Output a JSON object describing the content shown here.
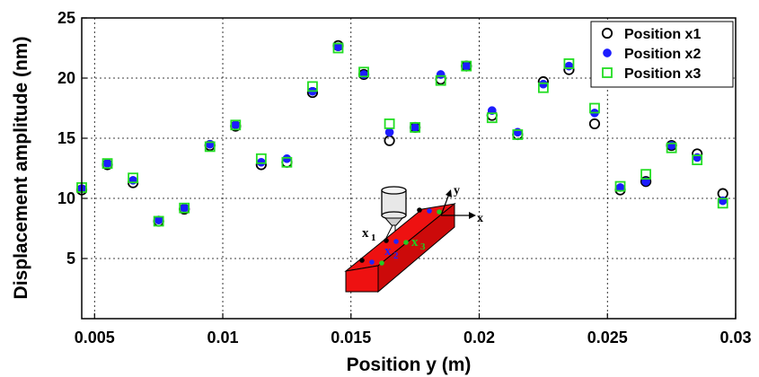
{
  "chart_data": {
    "type": "scatter",
    "xlabel": "Position y (m)",
    "ylabel": "Displacement amplitude (nm)",
    "xlim": [
      0.0045,
      0.03
    ],
    "ylim": [
      0,
      25
    ],
    "xticks": [
      0.005,
      0.01,
      0.015,
      0.02,
      0.025,
      0.03
    ],
    "xtick_labels": [
      "0.005",
      "0.01",
      "0.015",
      "0.02",
      "0.025",
      "0.03"
    ],
    "yticks": [
      5,
      10,
      15,
      20,
      25
    ],
    "ytick_labels": [
      "5",
      "10",
      "15",
      "20",
      "25"
    ],
    "grid": true,
    "legend_position": "top-right",
    "x": [
      0.0045,
      0.0055,
      0.0065,
      0.0075,
      0.0085,
      0.0095,
      0.0105,
      0.0115,
      0.0125,
      0.0135,
      0.0145,
      0.0155,
      0.0165,
      0.0175,
      0.0185,
      0.0195,
      0.0205,
      0.0215,
      0.0225,
      0.0235,
      0.0245,
      0.0255,
      0.0265,
      0.0275,
      0.0285,
      0.0295
    ],
    "series": [
      {
        "name": "Position x1",
        "marker": "circle-open",
        "color": "#000000",
        "values": [
          10.7,
          12.8,
          11.3,
          8.1,
          9.1,
          14.4,
          16.0,
          12.8,
          13.0,
          18.8,
          22.7,
          20.3,
          14.8,
          15.9,
          19.9,
          21.0,
          16.9,
          15.3,
          19.7,
          20.7,
          16.2,
          10.7,
          11.4,
          14.4,
          13.7,
          10.4
        ]
      },
      {
        "name": "Position x2",
        "marker": "circle-filled",
        "color": "#1c1cff",
        "values": [
          10.8,
          12.9,
          11.5,
          8.2,
          9.2,
          14.5,
          16.1,
          13.0,
          13.3,
          18.9,
          22.6,
          20.3,
          15.5,
          15.9,
          20.3,
          21.0,
          17.3,
          15.5,
          19.5,
          21.0,
          17.1,
          10.9,
          11.4,
          14.4,
          13.4,
          9.8
        ]
      },
      {
        "name": "Position x3",
        "marker": "square-open",
        "color": "#22dd22",
        "values": [
          10.9,
          12.9,
          11.7,
          8.1,
          9.2,
          14.3,
          16.1,
          13.3,
          13.0,
          19.3,
          22.5,
          20.5,
          16.2,
          15.9,
          19.8,
          21.0,
          16.7,
          15.3,
          19.2,
          21.2,
          17.5,
          11.0,
          12.0,
          14.2,
          13.2,
          9.6
        ]
      }
    ],
    "inset": {
      "labels": {
        "x_axis": "x",
        "y_axis": "y",
        "point1": "x",
        "point1_sub": "1",
        "point2": "x",
        "point2_sub": "2",
        "point3": "x",
        "point3_sub": "3"
      },
      "colors": {
        "beam": "#ee1111",
        "point1": "#000000",
        "point2": "#2222ff",
        "point3": "#22cc22"
      }
    }
  }
}
